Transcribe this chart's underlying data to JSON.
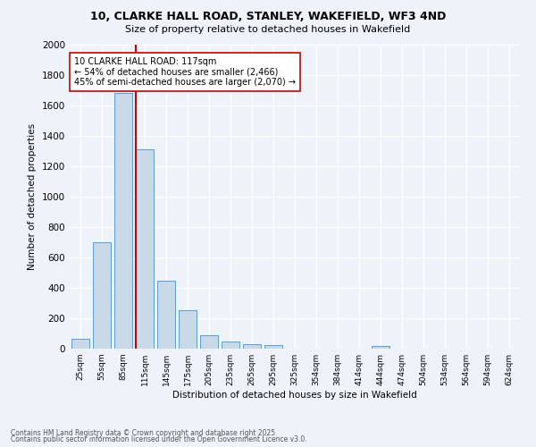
{
  "title_line1": "10, CLARKE HALL ROAD, STANLEY, WAKEFIELD, WF3 4ND",
  "title_line2": "Size of property relative to detached houses in Wakefield",
  "xlabel": "Distribution of detached houses by size in Wakefield",
  "ylabel": "Number of detached properties",
  "footnote1": "Contains HM Land Registry data © Crown copyright and database right 2025.",
  "footnote2": "Contains public sector information licensed under the Open Government Licence v3.0.",
  "categories": [
    "25sqm",
    "55sqm",
    "85sqm",
    "115sqm",
    "145sqm",
    "175sqm",
    "205sqm",
    "235sqm",
    "265sqm",
    "295sqm",
    "325sqm",
    "354sqm",
    "384sqm",
    "414sqm",
    "444sqm",
    "474sqm",
    "504sqm",
    "534sqm",
    "564sqm",
    "594sqm",
    "624sqm"
  ],
  "values": [
    65,
    700,
    1680,
    1310,
    445,
    255,
    90,
    50,
    30,
    25,
    0,
    0,
    0,
    0,
    20,
    0,
    0,
    0,
    0,
    0,
    0
  ],
  "bar_color": "#c9d9e8",
  "bar_edge_color": "#5b9bd5",
  "property_line_color": "#cc0000",
  "red_line_index": 2.6,
  "annotation_text": "10 CLARKE HALL ROAD: 117sqm\n← 54% of detached houses are smaller (2,466)\n45% of semi-detached houses are larger (2,070) →",
  "annotation_box_color": "#cc0000",
  "annotation_facecolor": "white",
  "ylim": [
    0,
    2000
  ],
  "background_color": "#eef2f9"
}
